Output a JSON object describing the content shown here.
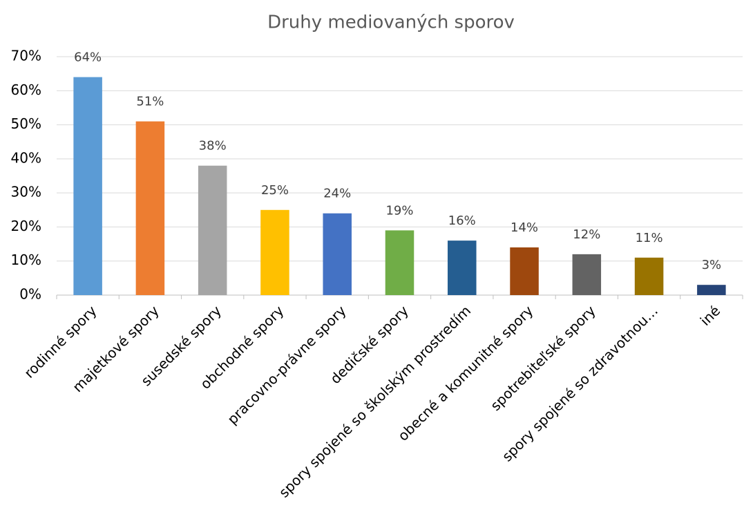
{
  "chart_data": {
    "type": "bar",
    "title": "Druhy mediovaných sporov",
    "categories": [
      "rodinné spory",
      "majetkové spory",
      "susedské spory",
      "obchodné spory",
      "pracovno-právne spory",
      "dedičské spory",
      "spory spojené so školským prostredím",
      "obecné a komunitné spory",
      "spotrebiteľské spory",
      "spory spojené so zdravotnou…",
      "iné"
    ],
    "values": [
      64,
      51,
      38,
      25,
      24,
      19,
      16,
      14,
      12,
      11,
      3
    ],
    "value_labels": [
      "64%",
      "51%",
      "38%",
      "25%",
      "24%",
      "19%",
      "16%",
      "14%",
      "12%",
      "11%",
      "3%"
    ],
    "colors": [
      "#5b9bd5",
      "#ed7d31",
      "#a5a5a5",
      "#ffc000",
      "#4472c4",
      "#70ad47",
      "#255e91",
      "#9e480e",
      "#636363",
      "#997300",
      "#264478"
    ],
    "ylim": [
      0,
      70
    ],
    "yticks": [
      {
        "value": 0,
        "label": "0%"
      },
      {
        "value": 10,
        "label": "10%"
      },
      {
        "value": 20,
        "label": "20%"
      },
      {
        "value": 30,
        "label": "30%"
      },
      {
        "value": 40,
        "label": "40%"
      },
      {
        "value": 50,
        "label": "50%"
      },
      {
        "value": 60,
        "label": "60%"
      },
      {
        "value": 70,
        "label": "70%"
      }
    ],
    "grid": true
  }
}
